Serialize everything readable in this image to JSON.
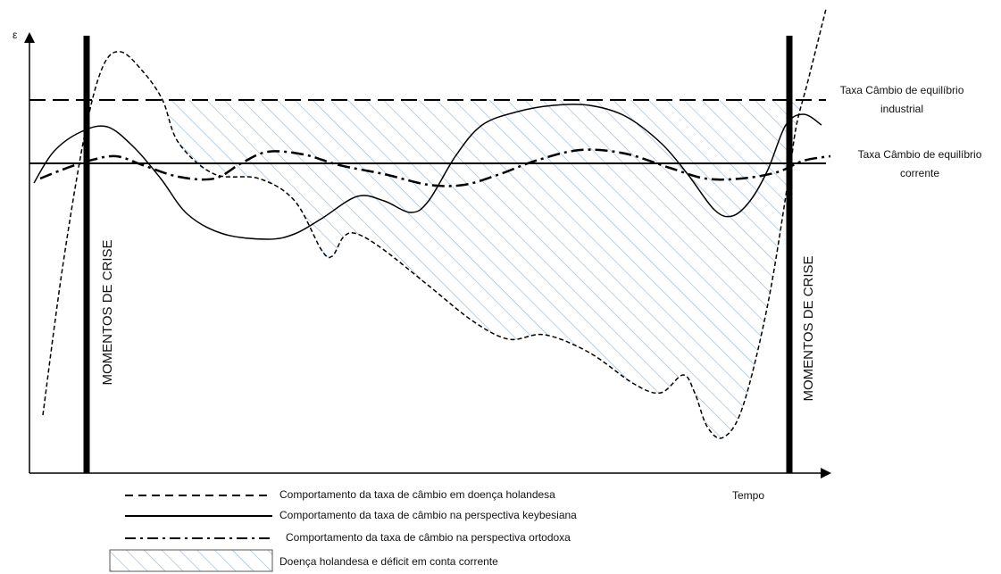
{
  "axes": {
    "y_label": "ε",
    "x_label": "Tempo"
  },
  "reference_lines": [
    {
      "label_lines": [
        "Taxa Câmbio de equilíbrio",
        "industrial"
      ]
    },
    {
      "label_lines": [
        "Taxa Câmbio de equilíbrio",
        "corrente"
      ]
    }
  ],
  "crisis_labels": [
    "MOMENTOS DE CRISE",
    "MOMENTOS DE CRISE"
  ],
  "legend": [
    "Comportamento  da taxa de câmbio em doença holandesa",
    "Comportamento  da taxa de câmbio na perspectiva keybesiana",
    "Comportamento  da taxa de câmbio na perspectiva ortodoxa",
    "Doença holandesa e déficit em conta corrente"
  ]
}
